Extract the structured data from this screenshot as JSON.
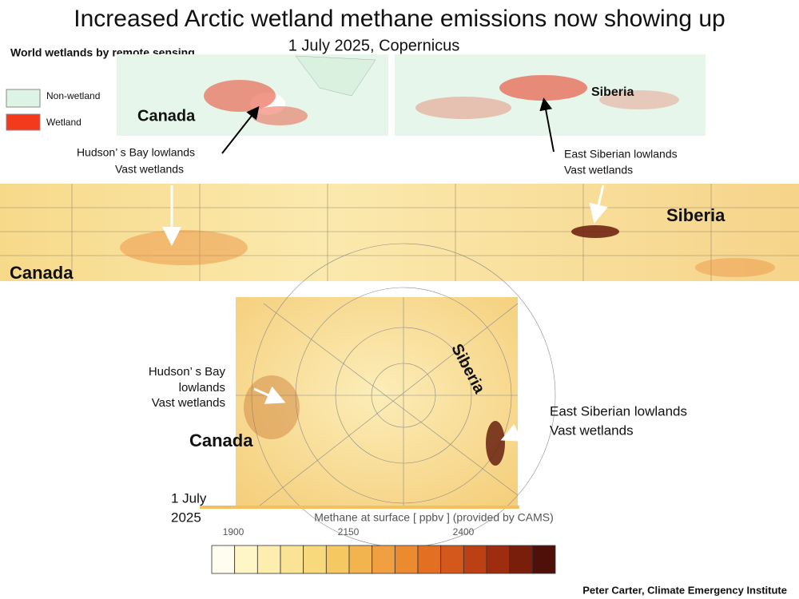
{
  "header": {
    "title": "Increased Arctic wetland methane emissions now showing up",
    "subtitle": "1 July 2025, Copernicus"
  },
  "wetland_map": {
    "heading": "World wetlands by remote sensing",
    "legend": [
      "Non-wetland",
      "Wetland"
    ],
    "labels": {
      "canada": "Canada",
      "siberia": "Siberia"
    },
    "hudson": [
      "Hudson’ s Bay lowlands",
      "Vast wetlands"
    ],
    "east_siberian": [
      "East Siberian lowlands",
      "Vast wetlands"
    ]
  },
  "methane_strip": {
    "labels": {
      "siberia": "Siberia",
      "canada": "Canada"
    }
  },
  "polar_map": {
    "siberia": "Siberia",
    "canada": "Canada",
    "hudson": [
      "Hudson’ s Bay",
      "lowlands",
      "Vast wetlands"
    ],
    "east_siberian": [
      "East Siberian lowlands",
      "Vast wetlands"
    ],
    "date": [
      "1 July",
      "2025"
    ],
    "caption": "Methane at surface [ ppbv ] (provided by CAMS)"
  },
  "colorbar": {
    "ticks": [
      1900,
      2150,
      2400
    ],
    "colors": [
      "#fffdf0",
      "#fff6c8",
      "#fdeeb0",
      "#fbe395",
      "#f8d97c",
      "#f5c862",
      "#f2b44e",
      "#f0a040",
      "#ec8a30",
      "#e36f23",
      "#d4571b",
      "#bd4015",
      "#9e2d10",
      "#7a1e0c",
      "#4e1009"
    ]
  },
  "footer": "Peter Carter,  Climate Emergency Institute"
}
